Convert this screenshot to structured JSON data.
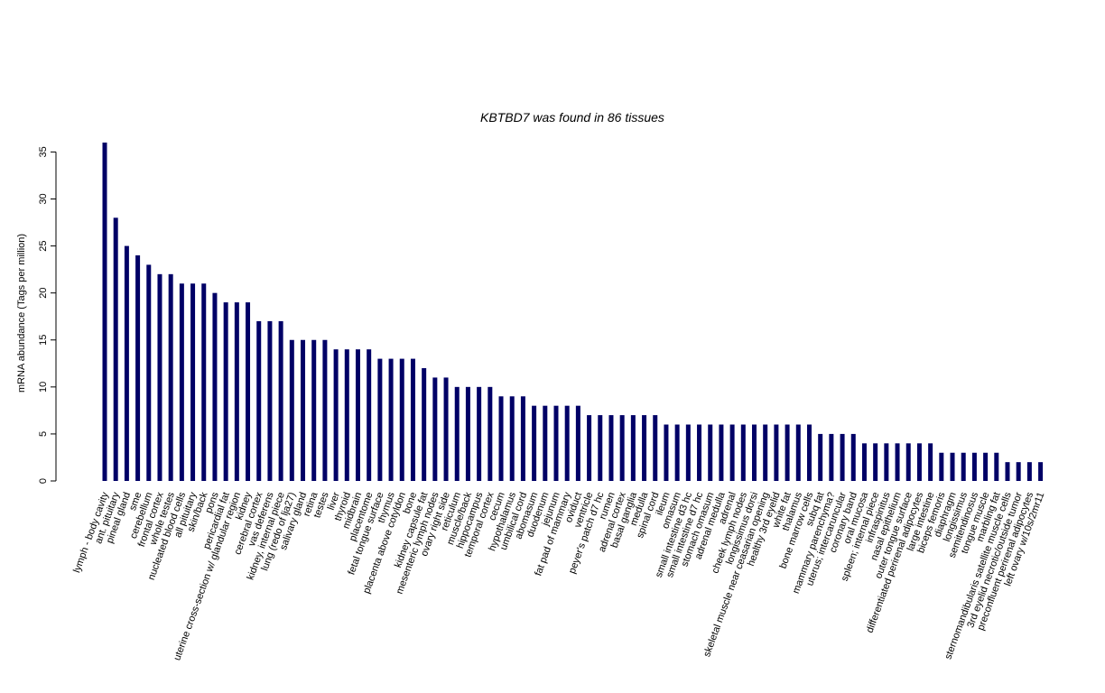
{
  "chart_data": {
    "type": "bar",
    "title": "KBTBD7  was found in  86  tissues",
    "xlabel": "",
    "ylabel": "mRNA abundance (Tags per million)",
    "ylim": [
      0,
      36
    ],
    "yticks": [
      0,
      5,
      10,
      15,
      20,
      25,
      30,
      35
    ],
    "grid": false,
    "bar_color": "#000066",
    "categories": [
      "lymph - body cavity",
      "ant. pituitary",
      "pineal gland",
      "sme",
      "cerebellum",
      "frontal cortex",
      "whole testes",
      "nucleated blood cells",
      "all pituitary",
      "skin/back",
      "pons",
      "pericardial fat",
      "uterine cross-section w/ glandular region",
      "kidney",
      "cerebral cortex",
      "vas deferens",
      "kidney, internal piece",
      "lung (redo of lja27)",
      "salivary gland",
      "retina",
      "testes",
      "liver",
      "thyroid",
      "midbrain",
      "placentome",
      "fetal tongue surface",
      "thymus",
      "placenta above cotyldon",
      "bone",
      "kidney capsule fat",
      "mesenteric lymph nodes",
      "ovary right side",
      "reticulum",
      "muscle/back",
      "hippocampus",
      "temporal cortex",
      "cecum",
      "hypothalamus",
      "umbilical cord",
      "abomasum",
      "duodenum",
      "jejunum",
      "fat pad of mammary",
      "oviduct",
      "ventricle",
      "peyer's patch d7 hc",
      "rumen",
      "adrenal cortex",
      "basal ganglia",
      "medulla",
      "spinal cord",
      "ileum",
      "omasum",
      "small intestine d3 hc",
      "small intestine d7 hc",
      "stomach omasum",
      "adrenal medulla",
      "adrenal",
      "cheek lymph nodes",
      "longissimus dorsi",
      "skeletal muscle near ceasarian opening",
      "healthy 3rd eyelid",
      "white fat",
      "thalamus",
      "bone marrow cells",
      "subq fat",
      "mammary parenchyma?",
      "uterus; intercaruncular",
      "coronary band",
      "oral mucosa",
      "spleen; internal piece",
      "infraspinitus",
      "nasal epithelium",
      "outer tongue surface",
      "differentiated perirenal adipocytes",
      "large intestine",
      "biceps femoris",
      "diaphragm",
      "longissimus",
      "semitendinosus",
      "tongue muscle",
      "marbling fat",
      "sternomandibularis satellite muscle cells",
      "3rd eyelid necrotic/outside tumor",
      "preconfluent perirenal adipocytes",
      "left ovary w/10s/2mr11"
    ],
    "values": [
      36,
      28,
      25,
      24,
      23,
      22,
      22,
      21,
      21,
      21,
      20,
      19,
      19,
      19,
      17,
      17,
      17,
      15,
      15,
      15,
      15,
      14,
      14,
      14,
      14,
      13,
      13,
      13,
      13,
      12,
      11,
      11,
      10,
      10,
      10,
      10,
      9,
      9,
      9,
      8,
      8,
      8,
      8,
      8,
      7,
      7,
      7,
      7,
      7,
      7,
      7,
      6,
      6,
      6,
      6,
      6,
      6,
      6,
      6,
      6,
      6,
      6,
      6,
      6,
      6,
      5,
      5,
      5,
      5,
      4,
      4,
      4,
      4,
      4,
      4,
      4,
      3,
      3,
      3,
      3,
      3,
      3,
      2,
      2,
      2,
      2
    ]
  }
}
